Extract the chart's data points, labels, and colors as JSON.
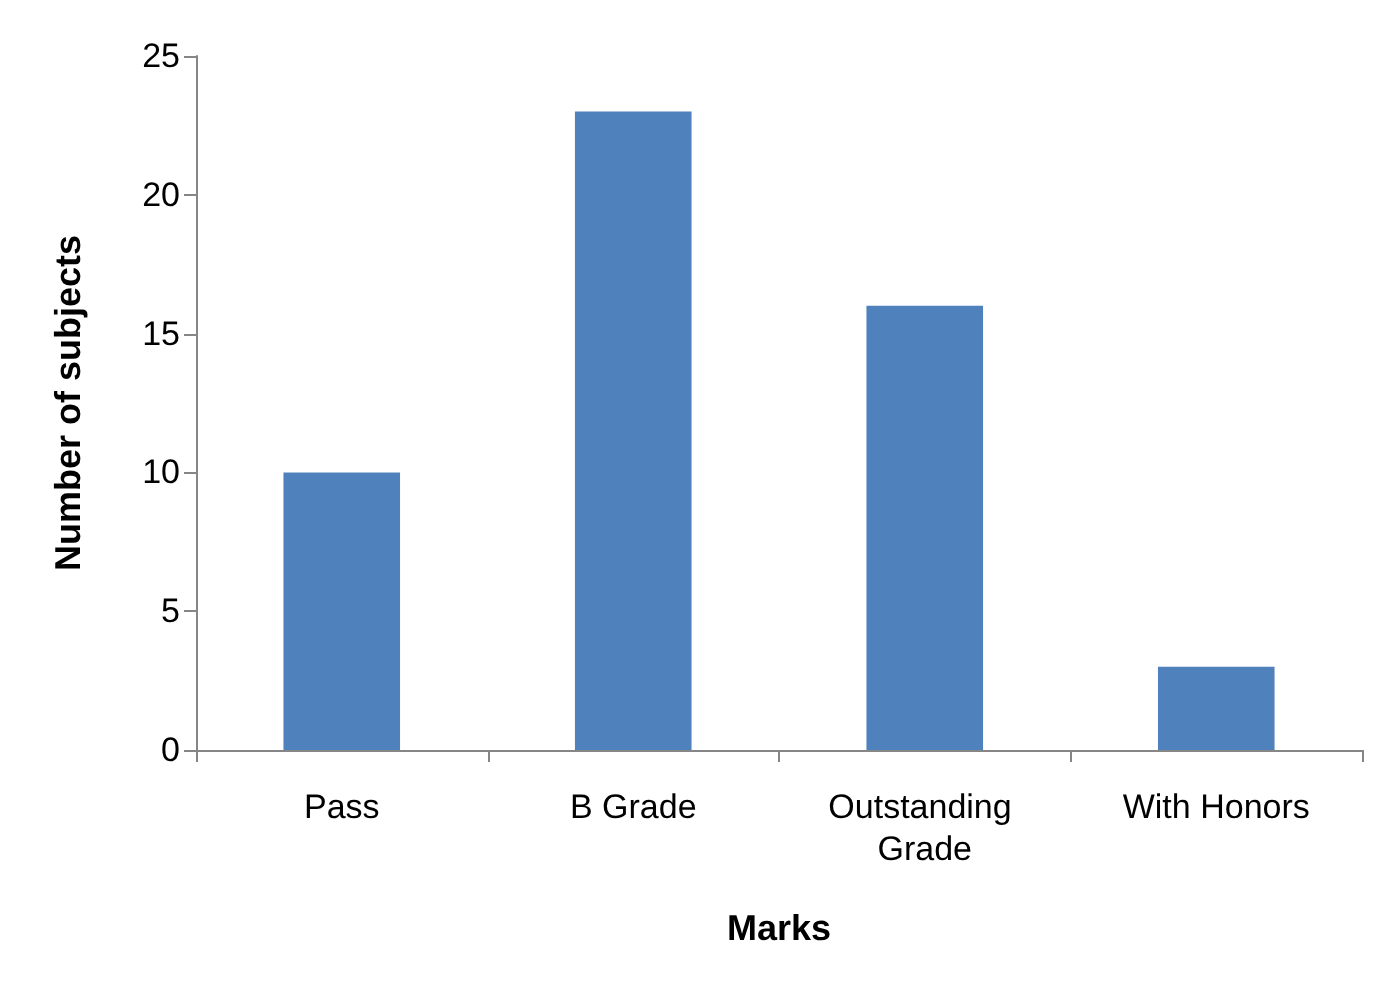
{
  "chart_data": {
    "type": "bar",
    "xlabel": "Marks",
    "ylabel": "Number of subjects",
    "categories": [
      "Pass",
      "B Grade",
      "Outstanding Grade",
      "With Honors"
    ],
    "values": [
      10,
      23,
      16,
      3
    ],
    "color": "#4f81bd",
    "ylim": [
      0,
      25
    ],
    "yticks": [
      0,
      5,
      10,
      15,
      20,
      25
    ],
    "grid": false
  }
}
